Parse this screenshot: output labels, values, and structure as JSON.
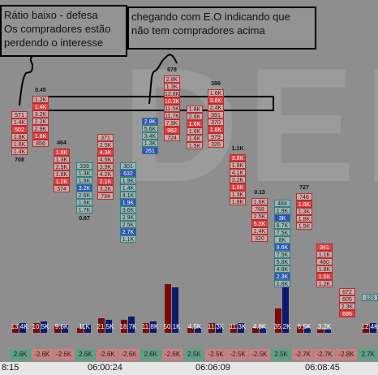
{
  "annotations": [
    {
      "lines": [
        "Rátio baixo - defesa",
        "Os compradores estão",
        "perdendo o interesse"
      ]
    },
    {
      "lines": [
        "chegando com E.O indicando que",
        "não tem compradores acima"
      ]
    }
  ],
  "watermark": "DEM",
  "columns": [
    {
      "top": "",
      "cells": [
        "571",
        "1.4K",
        "502",
        "1.8K",
        "1.6K",
        "1.4K"
      ],
      "bottom": "708"
    },
    {
      "top": "0.45",
      "cells": [
        "1.2K",
        "1.4K",
        "3.2K",
        "2.2K",
        "2.9K",
        "1.8K",
        "856"
      ],
      "bottom": ""
    },
    {
      "top": "464",
      "cells": [
        "1.8K",
        "1.3K",
        "2.5K",
        "1.8K",
        "1.2K",
        "374"
      ],
      "bottom": ""
    },
    {
      "top": "",
      "cells": [
        "339",
        "1.3K",
        "1.6K",
        "3.2K",
        "2.6K",
        "1.6K",
        "1.7K"
      ],
      "bottom": "0.67"
    },
    {
      "top": "",
      "cells": [
        "371",
        "2.5K",
        "4.3K",
        "4.5K",
        "3.9K",
        "4.2K",
        "2.1K",
        "3.2K",
        "734"
      ],
      "bottom": ""
    },
    {
      "top": "",
      "cells": [
        "301",
        "632",
        "1.9K",
        "1.4K",
        "4.1K",
        "1.9K",
        "3.6K",
        "2.9K",
        "2.5K",
        "2.7K",
        "1.1K"
      ],
      "bottom": ""
    },
    {
      "top": "",
      "cells": [
        "2.8K",
        "5.6K",
        "3.4K",
        "1.3K",
        "261"
      ],
      "bottom": ""
    },
    {
      "top": "678",
      "cells": [
        "2.8K",
        "1.3K",
        "12.8K",
        "10.3K",
        "11.5K",
        "11.7K",
        "7.9K",
        "982",
        "724"
      ],
      "bottom": ""
    },
    {
      "top": "",
      "cells": [
        "1.8K",
        "2.6K",
        "1.6K",
        "1.6K",
        "1.6K",
        "1.5K"
      ],
      "bottom": ""
    },
    {
      "top": "386",
      "cells": [
        "1.6K",
        "3.6K",
        "2.4K",
        "391",
        "370",
        "1.8K",
        "979",
        "326"
      ],
      "bottom": ""
    },
    {
      "top": "1.1K",
      "cells": [
        "3.8K",
        "1.9K",
        "4.1K",
        "3.2K",
        "1.6K",
        "1.3K",
        "1.8K"
      ],
      "bottom": ""
    },
    {
      "top": "0.13",
      "cells": [
        "1.6K",
        "768",
        "2.5K",
        "5.3K",
        "1.4K",
        "320"
      ],
      "bottom": ""
    },
    {
      "top": "",
      "cells": [
        "484",
        "1.9K",
        "3K",
        "6.7K",
        "7.5K",
        "8K",
        "8.6K",
        "7.5K",
        "5.8K",
        "4.9K",
        "2.3K",
        "1.8K"
      ],
      "bottom": ""
    },
    {
      "top": "727",
      "cells": [
        "748",
        "1.6K",
        "1.3K",
        "1.8K",
        "1.5K"
      ],
      "bottom": ""
    },
    {
      "top": "",
      "cells": [
        "341",
        "1.1K",
        "460",
        "1.8K",
        "1.5K",
        "1.2K"
      ],
      "bottom": ""
    },
    {
      "top": "",
      "cells": [
        "672",
        "605",
        "2.3K",
        "696"
      ],
      "bottom": ""
    },
    {
      "top": "",
      "cells": [
        "123"
      ],
      "bottom": ""
    }
  ],
  "volume_labels": [
    "13.4K",
    "10.5K",
    "9.8K",
    "11K",
    "21.5K",
    "18.7K",
    "11.8K",
    "50.1K",
    "4.5K",
    "11.3K",
    "11.3K",
    "4.8K",
    "35.2K",
    "6.5K",
    "3.2K",
    "12.4K"
  ],
  "volume_bars": [
    [
      5,
      6
    ],
    [
      6,
      7
    ],
    [
      4,
      5
    ],
    [
      3,
      5
    ],
    [
      9,
      8
    ],
    [
      8,
      10
    ],
    [
      6,
      7
    ],
    [
      30,
      28
    ],
    [
      3,
      3
    ],
    [
      6,
      5
    ],
    [
      5,
      6
    ],
    [
      3,
      3
    ],
    [
      15,
      28
    ],
    [
      4,
      3
    ],
    [
      2,
      2
    ],
    [
      5,
      6
    ]
  ],
  "delta_labels": [
    "2.6K",
    "-2.6K",
    "-2.6K",
    "2.6K",
    "-2.6K",
    "-2.6K",
    "2.6K",
    "-2.6K",
    "2.5K",
    "-2.5K",
    "-2.5K",
    "-2.5K",
    "2.5K",
    "-2.7K",
    "-2.7K",
    "-2.8K",
    "2.7K"
  ],
  "time_labels": [
    "8:15",
    "06:00:24",
    "06:06:09",
    "06:08:45"
  ]
}
